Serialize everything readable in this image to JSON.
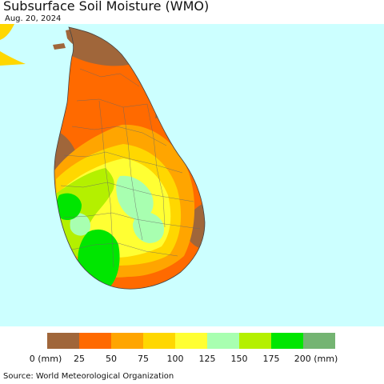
{
  "title": "Subsurface Soil Moisture (WMO)",
  "date": "Aug. 20, 2024",
  "source": "Source: World Meteorological Organization",
  "legend": {
    "labels": [
      "0 (mm)",
      "25",
      "50",
      "75",
      "100",
      "125",
      "150",
      "175",
      "200 (mm)"
    ],
    "colors": [
      "#a0663a",
      "#ff6a00",
      "#ffa500",
      "#ffd700",
      "#ffff33",
      "#a8ffb0",
      "#b4f000",
      "#00e600",
      "#74b472"
    ]
  },
  "colors": {
    "ocean": "#ccffff",
    "dry_0_25": "#a0663a",
    "range_25_50": "#ff6a00",
    "range_50_75": "#ffa500",
    "range_75_100": "#ffd700",
    "range_100_125": "#ffff33",
    "range_125_150": "#a8ffb0",
    "range_150_175": "#b4f000",
    "range_175_200": "#00e600"
  }
}
